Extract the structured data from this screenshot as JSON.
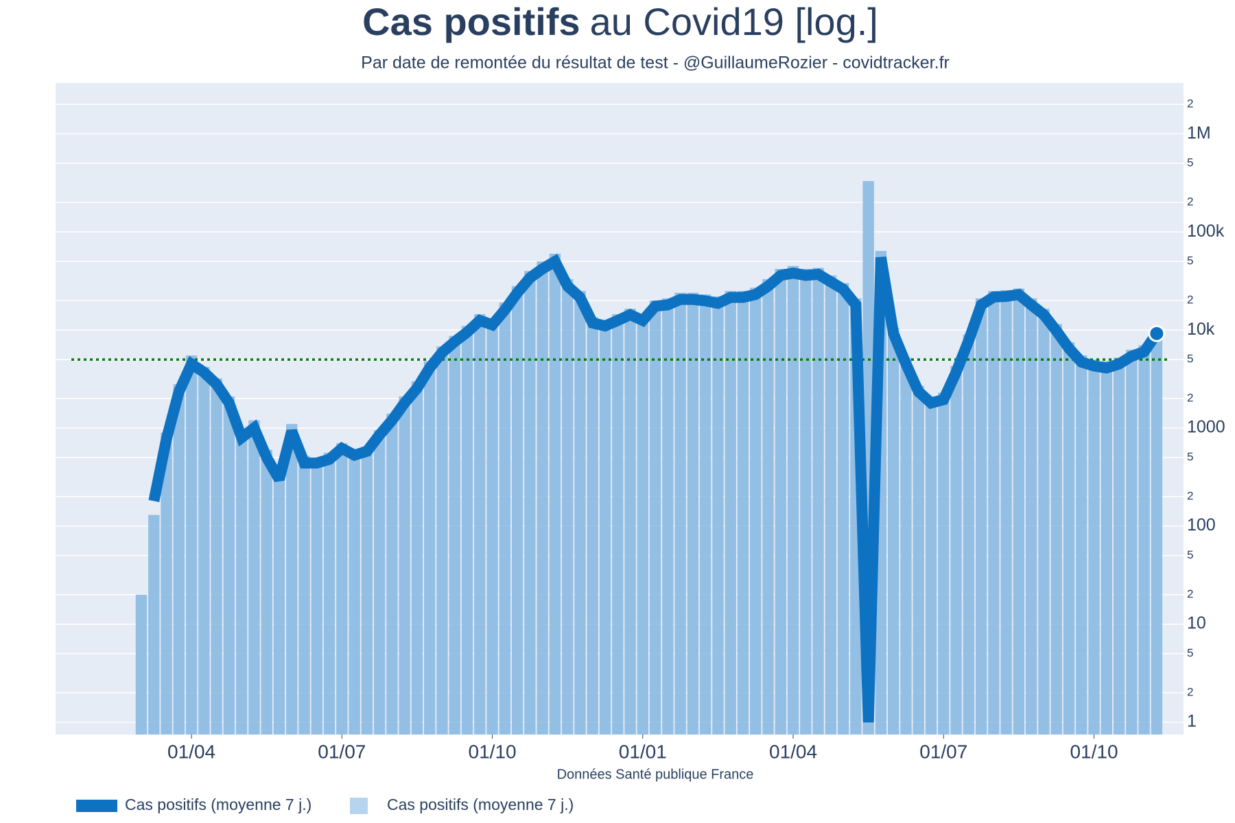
{
  "chart_data": {
    "type": "bar",
    "title": [
      "Cas positifs",
      "au Covid19 [log.]"
    ],
    "subtitle": "Par date de remontée du résultat de test - @GuillaumeRozier - covidtracker.fr",
    "x_label": "Données Santé publique France",
    "categories": [
      null,
      null,
      null,
      null,
      "01/04",
      null,
      null,
      null,
      null,
      null,
      null,
      null,
      null,
      null,
      null,
      null,
      "01/07",
      null,
      null,
      null,
      null,
      null,
      null,
      null,
      null,
      null,
      null,
      null,
      "01/10",
      null,
      null,
      null,
      null,
      null,
      null,
      null,
      null,
      null,
      null,
      null,
      "01/01",
      null,
      null,
      null,
      null,
      null,
      null,
      null,
      null,
      null,
      null,
      null,
      "01/04",
      null,
      null,
      null,
      null,
      null,
      null,
      null,
      null,
      null,
      null,
      null,
      "01/07",
      null,
      null,
      null,
      null,
      null,
      null,
      null,
      null,
      null,
      null,
      null,
      "01/10",
      null,
      null,
      null,
      null,
      null
    ],
    "series": [
      {
        "name": "Cas positifs (moyenne 7 j.)",
        "type": "line",
        "color": "#0e72c2",
        "values": [
          null,
          180,
          770,
          2350,
          4500,
          3700,
          2800,
          1800,
          800,
          1000,
          500,
          300,
          930,
          440,
          440,
          480,
          620,
          530,
          580,
          850,
          1200,
          1800,
          2550,
          4100,
          5900,
          7600,
          9500,
          12500,
          11300,
          16000,
          24000,
          34000,
          42000,
          50000,
          28000,
          21500,
          11800,
          11000,
          12500,
          14300,
          12500,
          17500,
          18000,
          20500,
          20500,
          19800,
          18700,
          21500,
          21500,
          23000,
          28000,
          36000,
          38000,
          36000,
          37000,
          31000,
          26000,
          18000,
          1,
          55000,
          9200,
          4500,
          2350,
          1800,
          1950,
          3700,
          7800,
          18000,
          21700,
          22000,
          23000,
          18000,
          14300,
          9800,
          6500,
          4700,
          4300,
          4100,
          4500,
          5400,
          6000,
          9200
        ]
      },
      {
        "name": "Cas positifs (moyenne 7 j.)",
        "type": "bar",
        "color": "#8fbde3",
        "values": [
          20,
          130,
          900,
          2800,
          5500,
          4200,
          3200,
          2100,
          950,
          1200,
          600,
          350,
          1100,
          520,
          500,
          560,
          700,
          600,
          650,
          950,
          1400,
          2100,
          3000,
          4800,
          6800,
          8700,
          11000,
          14500,
          13000,
          19000,
          28000,
          40000,
          50000,
          60000,
          33000,
          25000,
          13500,
          12500,
          14500,
          16500,
          14500,
          20000,
          21000,
          24000,
          24000,
          23000,
          22000,
          25000,
          25000,
          27000,
          33000,
          42000,
          45000,
          42000,
          43000,
          36000,
          30000,
          21000,
          330000,
          64000,
          10500,
          5200,
          2700,
          2100,
          2300,
          4300,
          9000,
          21000,
          25000,
          25500,
          26500,
          21000,
          16500,
          11500,
          7500,
          5500,
          5000,
          4800,
          5200,
          6300,
          7000,
          10800
        ]
      }
    ],
    "log_y": true,
    "ylim": [
      0.75,
      3300000
    ],
    "yticks": [
      1,
      2,
      5,
      10,
      {
        "value": 20,
        "label": "2"
      },
      {
        "value": 50,
        "label": "5"
      },
      100,
      {
        "value": 200,
        "label": "2"
      },
      {
        "value": 500,
        "label": "5"
      },
      1000,
      {
        "value": 2000,
        "label": "2"
      },
      {
        "value": 5000,
        "label": "5"
      },
      {
        "value": 10000,
        "label": "10k"
      },
      {
        "value": 20000,
        "label": "2"
      },
      {
        "value": 50000,
        "label": "5"
      },
      {
        "value": 100000,
        "label": "100k"
      },
      {
        "value": 200000,
        "label": "2"
      },
      {
        "value": 500000,
        "label": "5"
      },
      {
        "value": 1000000,
        "label": "1M"
      },
      {
        "value": 2000000,
        "label": "2"
      }
    ],
    "grid": true,
    "reference_line": {
      "value": 5000,
      "color": "#008000"
    }
  }
}
